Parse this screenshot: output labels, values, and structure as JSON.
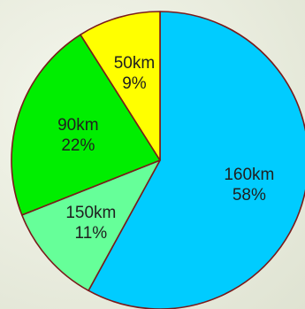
{
  "chart_data": {
    "type": "pie",
    "title": "",
    "slices": [
      {
        "label": "160km",
        "percent_label": "58%",
        "value": 58,
        "color": "#00ccff"
      },
      {
        "label": "150km",
        "percent_label": "11%",
        "value": 11,
        "color": "#66ff99"
      },
      {
        "label": "90km",
        "percent_label": "22%",
        "value": 22,
        "color": "#00ee00"
      },
      {
        "label": "50km",
        "percent_label": "9%",
        "value": 9,
        "color": "#ffff00"
      }
    ],
    "outline_color": "#7a1a1a"
  }
}
